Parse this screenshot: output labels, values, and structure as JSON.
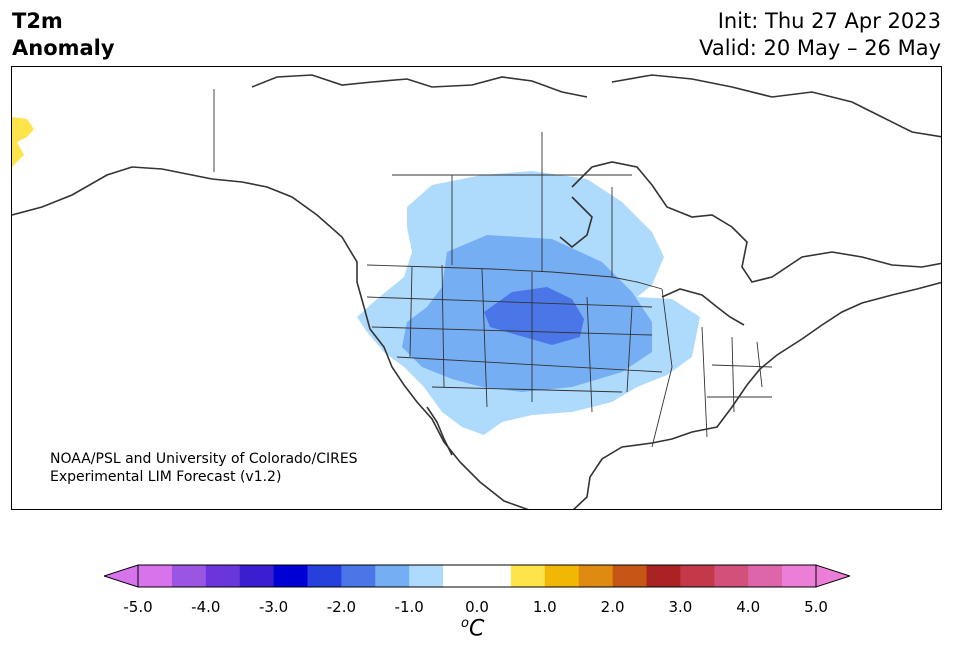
{
  "header": {
    "title_line1": "T2m",
    "title_line2": "Anomaly",
    "init": "Init: Thu 27 Apr 2023",
    "valid": "Valid: 20 May – 26 May"
  },
  "map": {
    "credit_line1": "NOAA/PSL and University of Colorado/CIRES",
    "credit_line2": "Experimental LIM Forecast (v1.2)"
  },
  "colorbar": {
    "unit_base": "C",
    "unit_sup": "o",
    "tick_labels": [
      "-5.0",
      "-4.0",
      "-3.0",
      "-2.0",
      "-1.0",
      "0.0",
      "1.0",
      "2.0",
      "3.0",
      "4.0",
      "5.0"
    ],
    "colors": [
      "#d774eb",
      "#9b55e3",
      "#6a36dc",
      "#3a1ecf",
      "#0000d4",
      "#2640de",
      "#4b76e8",
      "#76aef4",
      "#aedafc",
      "#ffffff",
      "#ffffff",
      "#ffe34a",
      "#f2b705",
      "#df8b12",
      "#c65616",
      "#a82321",
      "#c23a4a",
      "#d2507a",
      "#dd66a8",
      "#ec7ed8"
    ],
    "under_color": "#d774eb",
    "over_color": "#ec7ed8"
  },
  "anomaly_colors": {
    "light_blue": "#aedafc",
    "mid_blue": "#76aef4",
    "blue": "#4b76e8",
    "yellow": "#ffe34a"
  }
}
